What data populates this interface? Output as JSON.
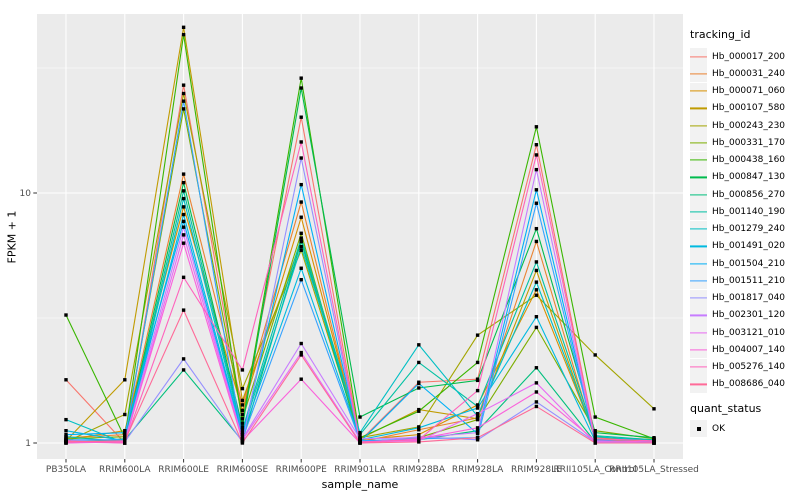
{
  "chart_data": {
    "type": "line",
    "title": "",
    "xlabel": "sample_name",
    "ylabel": "FPKM + 1",
    "y_scale": "log10",
    "y_ticks": [
      1,
      10
    ],
    "y_minor_ticks": [
      3.1623,
      31.623
    ],
    "ylim": [
      0.86,
      52
    ],
    "grid": "on",
    "legend_position": "right",
    "panel_bg": "#EBEBEB",
    "grid_color": "#FFFFFF",
    "key_bg": "#F2F2F2",
    "tick_label_color": "#4D4D4D",
    "marker": "black-square",
    "marker_color": "#000000",
    "categories": [
      "PB350LA",
      "RRIM600LA",
      "RRIM600LE",
      "RRIM600SE",
      "RRIM600PE",
      "RRIM901LA",
      "RRIM928BA",
      "RRIM928LA",
      "RRIM928LE",
      "RRII105LA_Control",
      "RRII105LA_Stressed"
    ],
    "series": [
      {
        "name": "Hb_000017_200",
        "color": "#F8766D",
        "values": [
          1.79,
          1,
          27,
          1.3,
          20.1,
          1.02,
          1.75,
          1.8,
          15.6,
          1.05,
          1.03
        ]
      },
      {
        "name": "Hb_000031_240",
        "color": "#EA8331",
        "values": [
          1.05,
          1.08,
          11.9,
          1.42,
          9.2,
          1.01,
          1.13,
          1.26,
          6.4,
          1.03,
          1.02
        ]
      },
      {
        "name": "Hb_000071_060",
        "color": "#D89000",
        "values": [
          1.03,
          1.12,
          8.8,
          1.35,
          8,
          1.03,
          1.08,
          1.42,
          4.1,
          1.06,
          1.01
        ]
      },
      {
        "name": "Hb_000107_580",
        "color": "#C09B00",
        "values": [
          1.02,
          1.79,
          46,
          1.48,
          6.4,
          1.04,
          1.36,
          1.25,
          4.9,
          1.04,
          1.02
        ]
      },
      {
        "name": "Hb_000243_230",
        "color": "#A3A500",
        "values": [
          1.01,
          1.3,
          25,
          1.65,
          5.9,
          1.05,
          1.16,
          2.7,
          3.9,
          2.25,
          1.37
        ]
      },
      {
        "name": "Hb_000331_170",
        "color": "#7CAE00",
        "values": [
          1.04,
          1.06,
          21.7,
          1.25,
          6.9,
          1,
          1.05,
          1.24,
          2.9,
          1.12,
          1.04
        ]
      },
      {
        "name": "Hb_000438_160",
        "color": "#39B600",
        "values": [
          3.25,
          1.05,
          43,
          1.2,
          28.8,
          1.05,
          1.34,
          2.1,
          18.4,
          1.27,
          1.04
        ]
      },
      {
        "name": "Hb_000847_130",
        "color": "#00BB4E",
        "values": [
          1,
          1.04,
          11,
          1.16,
          26.3,
          1.27,
          1.66,
          1.78,
          7.2,
          1.1,
          1.05
        ]
      },
      {
        "name": "Hb_000856_270",
        "color": "#00BF7D",
        "values": [
          1.01,
          1.03,
          1.96,
          1.02,
          6.4,
          1.02,
          1.03,
          1.12,
          2,
          1.01,
          1
        ]
      },
      {
        "name": "Hb_001140_190",
        "color": "#00C1A3",
        "values": [
          1.06,
          1.01,
          10.2,
          1.13,
          6.6,
          1.08,
          2.1,
          1.4,
          5.3,
          1.07,
          1.03
        ]
      },
      {
        "name": "Hb_001279_240",
        "color": "#00BFC4",
        "values": [
          1.24,
          1,
          9.5,
          1.1,
          6.1,
          1.1,
          2.47,
          1.28,
          4.4,
          1.06,
          1.02
        ]
      },
      {
        "name": "Hb_001491_020",
        "color": "#00BAE0",
        "values": [
          1.12,
          1.02,
          8.2,
          1.08,
          5,
          1.03,
          1.15,
          1.38,
          3.2,
          1.02,
          1.01
        ]
      },
      {
        "name": "Hb_001504_210",
        "color": "#00B0F6",
        "values": [
          1.08,
          1.1,
          7.7,
          1.06,
          10.8,
          1.01,
          1.73,
          1.09,
          10.3,
          1.03,
          1
        ]
      },
      {
        "name": "Hb_001511_210",
        "color": "#35A2FF",
        "values": [
          1.03,
          1.03,
          23.3,
          1.04,
          4.5,
          1.02,
          1.04,
          1.05,
          9.1,
          1.02,
          1.01
        ]
      },
      {
        "name": "Hb_001817_040",
        "color": "#9590FF",
        "values": [
          1.02,
          1.01,
          2.17,
          1.01,
          13.8,
          1,
          1.06,
          1.03,
          1.46,
          1.01,
          1
        ]
      },
      {
        "name": "Hb_002301_120",
        "color": "#C77CFF",
        "values": [
          1,
          1.02,
          7.3,
          1.04,
          2.5,
          1.04,
          1.05,
          1.1,
          12.4,
          1.01,
          1
        ]
      },
      {
        "name": "Hb_003121_010",
        "color": "#E76BF3",
        "values": [
          1.01,
          1,
          6.8,
          1.03,
          2.3,
          1.01,
          1.02,
          1.31,
          1.74,
          1,
          1
        ]
      },
      {
        "name": "Hb_004007_140",
        "color": "#FA62DB",
        "values": [
          1,
          1.01,
          6.3,
          1.02,
          1.8,
          1,
          1.04,
          1.15,
          1.6,
          1.02,
          1.01
        ]
      },
      {
        "name": "Hb_005276_140",
        "color": "#FF62BC",
        "values": [
          1.02,
          1,
          4.6,
          1.96,
          16,
          1.01,
          1.03,
          1.62,
          14.2,
          1.04,
          1.02
        ]
      },
      {
        "name": "Hb_008686_040",
        "color": "#FF6A98",
        "values": [
          1.01,
          1.02,
          3.4,
          1,
          2.25,
          1,
          1.01,
          1.05,
          1.4,
          1,
          1
        ]
      }
    ],
    "legend": {
      "color_title": "tracking_id",
      "shape_title": "quant_status",
      "shape_items": [
        {
          "label": "OK",
          "marker": "black-square"
        }
      ]
    }
  }
}
